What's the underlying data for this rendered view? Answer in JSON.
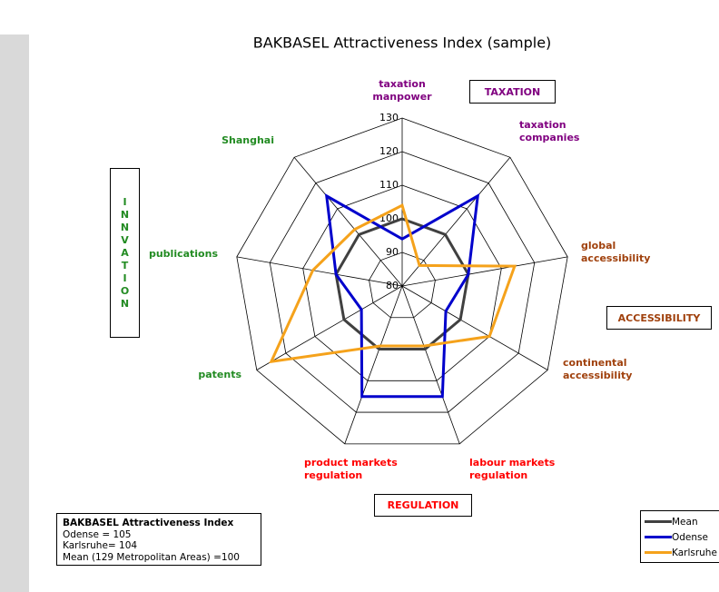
{
  "chart_data": {
    "type": "radar",
    "title": "BAKBASEL Attractiveness Index (sample)",
    "categories": [
      "taxation\nmanpower",
      "taxation\ncompanies",
      "global\naccessibility",
      "continental\naccessibility",
      "labour markets\nregulation",
      "product markets\nregulation",
      "patents",
      "publications",
      "Shanghai"
    ],
    "category_colors": [
      "#800080",
      "#800080",
      "#a0410d",
      "#a0410d",
      "#ff0000",
      "#ff0000",
      "#228b22",
      "#228b22",
      "#228b22"
    ],
    "groups": [
      {
        "label": "TAXATION",
        "color": "#800080"
      },
      {
        "label": "ACCESSIBILITY",
        "color": "#a0410d"
      },
      {
        "label": "REGULATION",
        "color": "#ff0000"
      },
      {
        "label": "INNVATION",
        "color": "#228b22"
      }
    ],
    "rlim": [
      80,
      130
    ],
    "rticks": [
      80,
      90,
      100,
      110,
      120,
      130
    ],
    "series": [
      {
        "name": "Mean",
        "color": "#404040",
        "values": [
          100,
          100,
          100,
          100,
          100,
          100,
          100,
          100,
          100
        ]
      },
      {
        "name": "Odense",
        "color": "#0000cc",
        "values": [
          94,
          115,
          100,
          95,
          115,
          115,
          94,
          100,
          115
        ]
      },
      {
        "name": "Karlsruhe",
        "color": "#f5a21b",
        "values": [
          104,
          88,
          114,
          110,
          99,
          99,
          125,
          107,
          102
        ]
      }
    ],
    "info_box": {
      "title": "BAKBASEL Attractiveness Index",
      "lines": [
        "Odense = 105",
        "Karlsruhe= 104",
        "Mean (129 Metropolitan Areas) =100"
      ]
    }
  }
}
